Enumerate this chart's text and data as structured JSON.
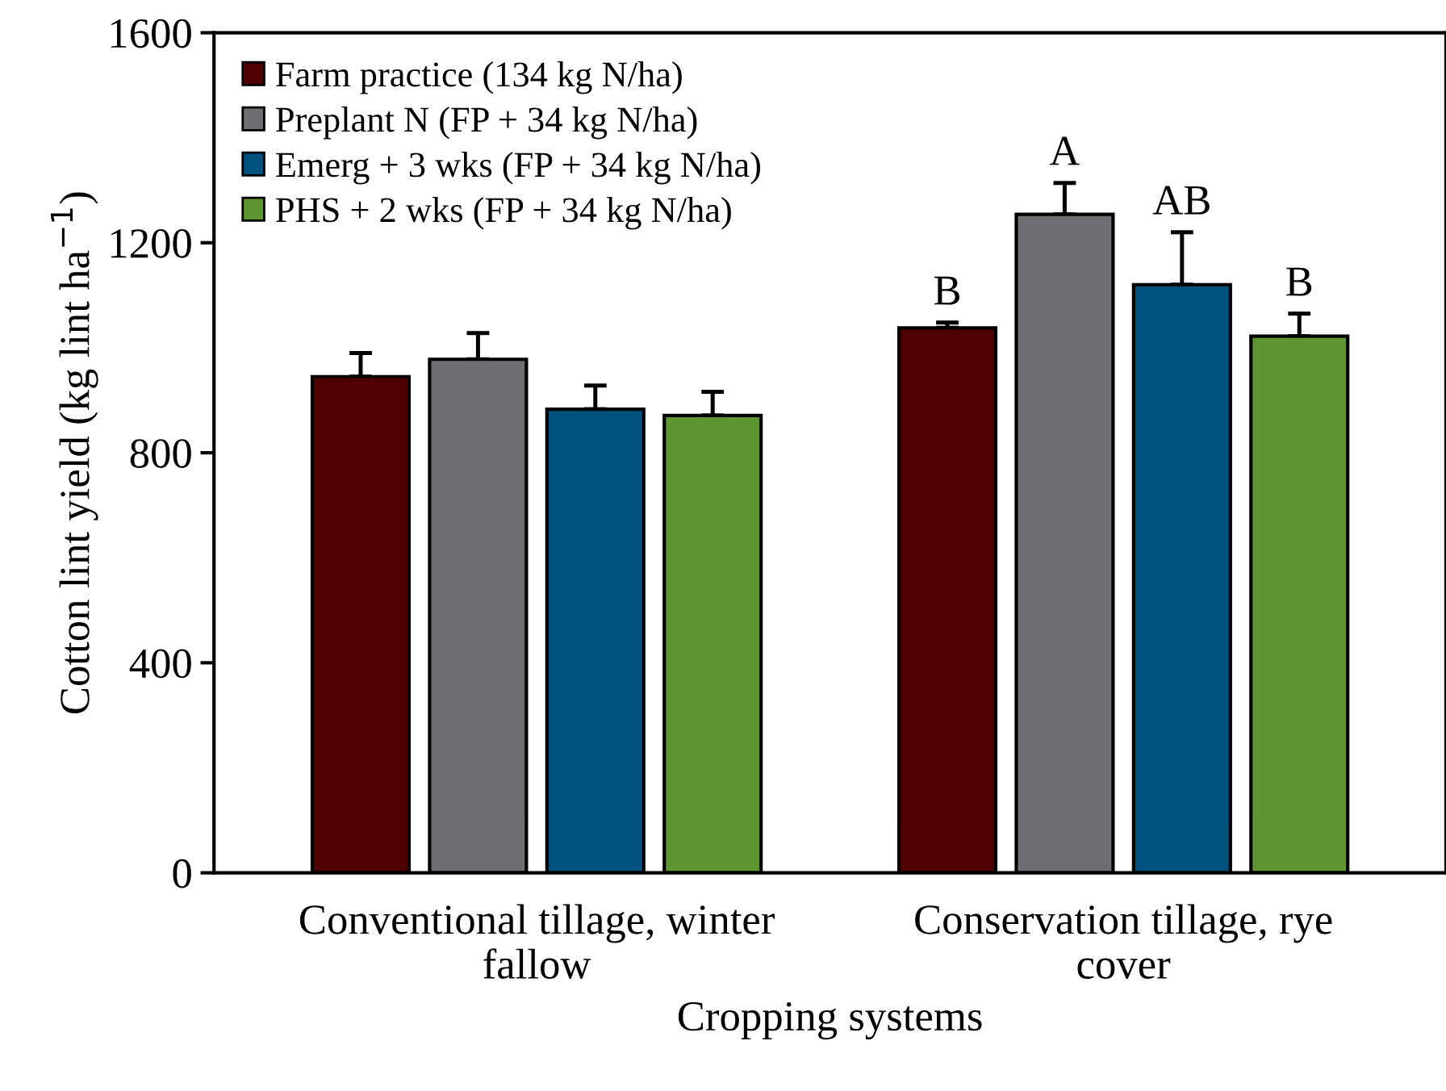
{
  "chart_data": {
    "type": "bar",
    "xlabel": "Cropping systems",
    "ylabel": "Cotton lint yield (kg lint ha$^{−1}$)",
    "categories": [
      "Conventional tillage, winter\nfallow",
      "Conservation tillage, rye\ncover"
    ],
    "series": [
      {
        "name": "Farm practice (134 kg N/ha)",
        "color": "#4f0000",
        "values": [
          945,
          1038
        ],
        "errors": [
          45,
          10
        ]
      },
      {
        "name": "Preplant N (FP + 34 kg N/ha)",
        "color": "#6f6f73",
        "values": [
          978,
          1254
        ],
        "errors": [
          50,
          60
        ]
      },
      {
        "name": "Emerg + 3 wks (FP + 34 kg N/ha)",
        "color": "#00527e",
        "values": [
          883,
          1120
        ],
        "errors": [
          45,
          100
        ]
      },
      {
        "name": "PHS + 2 wks (FP + 34 kg N/ha)",
        "color": "#5e9732",
        "values": [
          871,
          1022
        ],
        "errors": [
          45,
          43
        ]
      }
    ],
    "annotations": [
      "B",
      "A",
      "AB",
      "B"
    ],
    "ylim": [
      0,
      1600
    ],
    "yticks": [
      0,
      400,
      800,
      1200,
      1600
    ],
    "grid": false,
    "legend": "top left"
  }
}
